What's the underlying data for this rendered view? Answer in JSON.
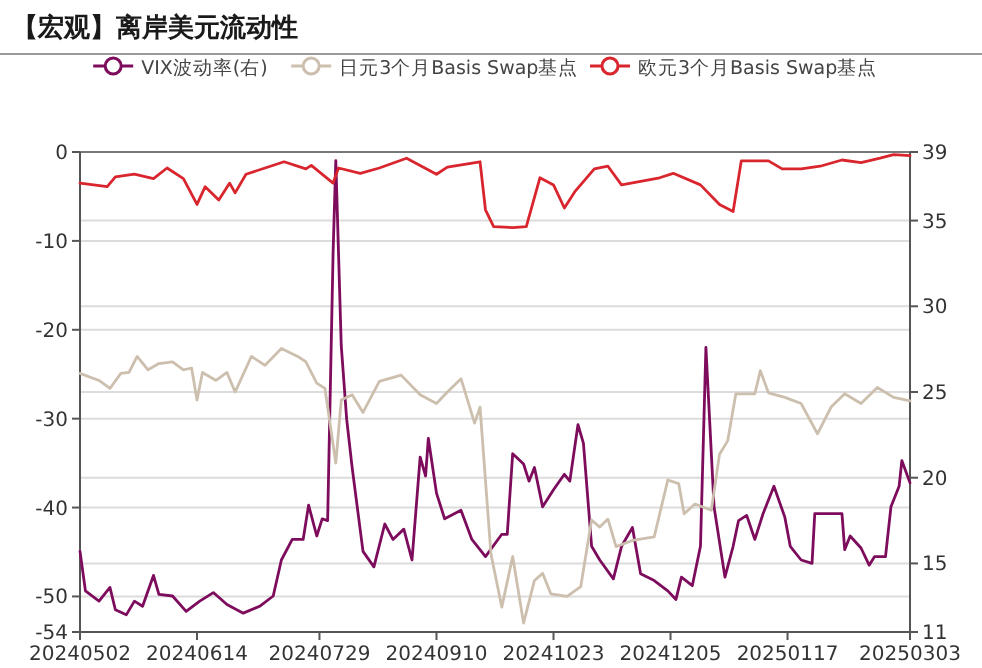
{
  "chart_data": {
    "type": "line",
    "title": "【宏观】离岸美元流动性",
    "legend": "top",
    "grid": true,
    "xlim": [
      "2024-05-02",
      "2025-03-03"
    ],
    "xticks": [
      {
        "value": "2024-05-02",
        "label": "20240502"
      },
      {
        "value": "2024-06-14",
        "label": "20240614"
      },
      {
        "value": "2024-07-29",
        "label": "20240729"
      },
      {
        "value": "2024-09-10",
        "label": "20240910"
      },
      {
        "value": "2024-10-23",
        "label": "20241023"
      },
      {
        "value": "2024-12-05",
        "label": "20241205"
      },
      {
        "value": "2025-01-17",
        "label": "20250117"
      },
      {
        "value": "2025-03-03",
        "label": "20250303"
      }
    ],
    "ylim": [
      -54,
      0
    ],
    "yticks": [
      -54,
      -50,
      -40,
      -30,
      -20,
      -10,
      0
    ],
    "y2lim": [
      11,
      39
    ],
    "y2ticks": [
      11,
      15,
      20,
      25,
      30,
      35,
      39
    ],
    "series": [
      {
        "name": "VIX波动率(右)",
        "color": "#7d0c5c",
        "axis": "y2",
        "x": [
          "2024-05-02",
          "2024-05-04",
          "2024-05-09",
          "2024-05-13",
          "2024-05-15",
          "2024-05-19",
          "2024-05-22",
          "2024-05-25",
          "2024-05-29",
          "2024-05-31",
          "2024-06-05",
          "2024-06-10",
          "2024-06-15",
          "2024-06-20",
          "2024-06-25",
          "2024-07-01",
          "2024-07-07",
          "2024-07-12",
          "2024-07-15",
          "2024-07-19",
          "2024-07-23",
          "2024-07-25",
          "2024-07-28",
          "2024-07-30",
          "2024-08-01",
          "2024-08-03",
          "2024-08-04",
          "2024-08-06",
          "2024-08-08",
          "2024-08-10",
          "2024-08-14",
          "2024-08-18",
          "2024-08-22",
          "2024-08-25",
          "2024-08-29",
          "2024-09-01",
          "2024-09-04",
          "2024-09-06",
          "2024-09-07",
          "2024-09-10",
          "2024-09-13",
          "2024-09-19",
          "2024-09-23",
          "2024-09-28",
          "2024-10-04",
          "2024-10-06",
          "2024-10-08",
          "2024-10-12",
          "2024-10-14",
          "2024-10-16",
          "2024-10-19",
          "2024-10-23",
          "2024-10-27",
          "2024-10-29",
          "2024-11-01",
          "2024-11-03",
          "2024-11-06",
          "2024-11-09",
          "2024-11-14",
          "2024-11-17",
          "2024-11-21",
          "2024-11-24",
          "2024-11-29",
          "2024-12-04",
          "2024-12-07",
          "2024-12-09",
          "2024-12-13",
          "2024-12-16",
          "2024-12-18",
          "2024-12-21",
          "2024-12-25",
          "2024-12-28",
          "2024-12-30",
          "2025-01-02",
          "2025-01-05",
          "2025-01-08",
          "2025-01-12",
          "2025-01-16",
          "2025-01-18",
          "2025-01-22",
          "2025-01-26",
          "2025-01-27",
          "2025-02-06",
          "2025-02-07",
          "2025-02-09",
          "2025-02-13",
          "2025-02-16",
          "2025-02-18",
          "2025-02-22",
          "2025-02-24",
          "2025-02-27",
          "2025-02-28",
          "2025-03-03"
        ],
        "values": [
          15.7,
          13.4,
          12.8,
          13.6,
          12.3,
          12.0,
          12.8,
          12.5,
          14.3,
          13.2,
          13.1,
          12.2,
          12.8,
          13.3,
          12.6,
          12.1,
          12.5,
          13.1,
          15.2,
          16.4,
          16.4,
          18.4,
          16.6,
          17.6,
          17.5,
          33.1,
          38.5,
          27.7,
          23.4,
          20.6,
          15.7,
          14.8,
          17.3,
          16.4,
          17.0,
          15.2,
          21.2,
          20.1,
          22.3,
          19.1,
          17.6,
          18.1,
          16.4,
          15.4,
          16.7,
          16.7,
          21.4,
          20.8,
          19.8,
          20.6,
          18.3,
          19.3,
          20.2,
          19.8,
          23.1,
          22.0,
          16.0,
          15.2,
          14.1,
          16.0,
          17.1,
          14.4,
          14.0,
          13.4,
          12.9,
          14.2,
          13.7,
          16.0,
          27.6,
          18.3,
          14.2,
          16.0,
          17.5,
          17.8,
          16.4,
          17.9,
          19.5,
          17.7,
          16.0,
          15.2,
          15.0,
          17.9,
          17.9,
          15.8,
          16.6,
          15.9,
          14.9,
          15.4,
          15.4,
          18.3,
          19.5,
          21.0,
          19.7
        ]
      },
      {
        "name": "日元3个月Basis Swap基点",
        "color": "#cdbfae",
        "x": [
          "2024-05-02",
          "2024-05-09",
          "2024-05-13",
          "2024-05-17",
          "2024-05-20",
          "2024-05-23",
          "2024-05-27",
          "2024-05-31",
          "2024-06-05",
          "2024-06-09",
          "2024-06-12",
          "2024-06-14",
          "2024-06-16",
          "2024-06-21",
          "2024-06-25",
          "2024-06-28",
          "2024-07-04",
          "2024-07-09",
          "2024-07-15",
          "2024-07-21",
          "2024-07-24",
          "2024-07-28",
          "2024-07-31",
          "2024-08-04",
          "2024-08-06",
          "2024-08-10",
          "2024-08-14",
          "2024-08-20",
          "2024-08-28",
          "2024-09-04",
          "2024-09-10",
          "2024-09-14",
          "2024-09-19",
          "2024-09-24",
          "2024-09-26",
          "2024-09-30",
          "2024-10-04",
          "2024-10-08",
          "2024-10-12",
          "2024-10-16",
          "2024-10-19",
          "2024-10-22",
          "2024-10-28",
          "2024-11-02",
          "2024-11-06",
          "2024-11-09",
          "2024-11-12",
          "2024-11-15",
          "2024-11-21",
          "2024-11-29",
          "2024-12-04",
          "2024-12-08",
          "2024-12-10",
          "2024-12-14",
          "2024-12-20",
          "2024-12-23",
          "2024-12-26",
          "2024-12-29",
          "2025-01-05",
          "2025-01-07",
          "2025-01-10",
          "2025-01-16",
          "2025-01-22",
          "2025-01-28",
          "2025-02-02",
          "2025-02-07",
          "2025-02-13",
          "2025-02-19",
          "2025-02-25",
          "2025-03-03"
        ],
        "values": [
          -24.9,
          -25.7,
          -26.6,
          -24.9,
          -24.8,
          -23.0,
          -24.5,
          -23.8,
          -23.6,
          -24.5,
          -24.3,
          -27.9,
          -24.8,
          -25.7,
          -24.8,
          -27.0,
          -23.0,
          -24.0,
          -22.1,
          -23.0,
          -23.6,
          -26.0,
          -26.6,
          -35.0,
          -27.9,
          -27.3,
          -29.3,
          -25.8,
          -25.1,
          -27.3,
          -28.3,
          -27.0,
          -25.5,
          -30.5,
          -28.7,
          -45.2,
          -51.2,
          -45.5,
          -53.0,
          -48.2,
          -47.4,
          -49.7,
          -50.0,
          -48.9,
          -41.4,
          -42.2,
          -41.3,
          -44.4,
          -43.7,
          -43.3,
          -36.9,
          -37.3,
          -40.7,
          -39.6,
          -40.3,
          -34.0,
          -32.5,
          -27.2,
          -27.2,
          -24.6,
          -27.1,
          -27.6,
          -28.3,
          -31.7,
          -28.7,
          -27.2,
          -28.3,
          -26.5,
          -27.6,
          -28.0
        ]
      },
      {
        "name": "欧元3个月Basis Swap基点",
        "color": "#d9262e",
        "x": [
          "2024-05-02",
          "2024-05-12",
          "2024-05-15",
          "2024-05-22",
          "2024-05-29",
          "2024-06-03",
          "2024-06-09",
          "2024-06-14",
          "2024-06-17",
          "2024-06-22",
          "2024-06-26",
          "2024-06-28",
          "2024-07-02",
          "2024-07-09",
          "2024-07-16",
          "2024-07-24",
          "2024-07-26",
          "2024-08-03",
          "2024-08-05",
          "2024-08-13",
          "2024-08-20",
          "2024-08-30",
          "2024-09-10",
          "2024-09-14",
          "2024-09-26",
          "2024-09-28",
          "2024-10-01",
          "2024-10-08",
          "2024-10-13",
          "2024-10-18",
          "2024-10-23",
          "2024-10-27",
          "2024-10-31",
          "2024-11-07",
          "2024-11-12",
          "2024-11-17",
          "2024-11-24",
          "2024-12-01",
          "2024-12-06",
          "2024-12-16",
          "2024-12-23",
          "2024-12-28",
          "2024-12-31",
          "2025-01-10",
          "2025-01-15",
          "2025-01-22",
          "2025-01-29",
          "2025-02-06",
          "2025-02-13",
          "2025-02-20",
          "2025-02-25",
          "2025-03-03"
        ],
        "values": [
          -3.5,
          -3.9,
          -2.8,
          -2.5,
          -3.0,
          -1.8,
          -3.0,
          -5.9,
          -3.9,
          -5.4,
          -3.5,
          -4.6,
          -2.5,
          -1.8,
          -1.1,
          -1.9,
          -1.5,
          -3.5,
          -1.8,
          -2.4,
          -1.8,
          -0.7,
          -2.5,
          -1.7,
          -1.1,
          -6.5,
          -8.4,
          -8.5,
          -8.4,
          -2.9,
          -3.7,
          -6.3,
          -4.4,
          -1.9,
          -1.6,
          -3.7,
          -3.3,
          -2.9,
          -2.4,
          -3.7,
          -5.9,
          -6.7,
          -1.0,
          -1.0,
          -1.9,
          -1.9,
          -1.6,
          -0.9,
          -1.2,
          -0.7,
          -0.3,
          -0.4
        ]
      }
    ]
  }
}
